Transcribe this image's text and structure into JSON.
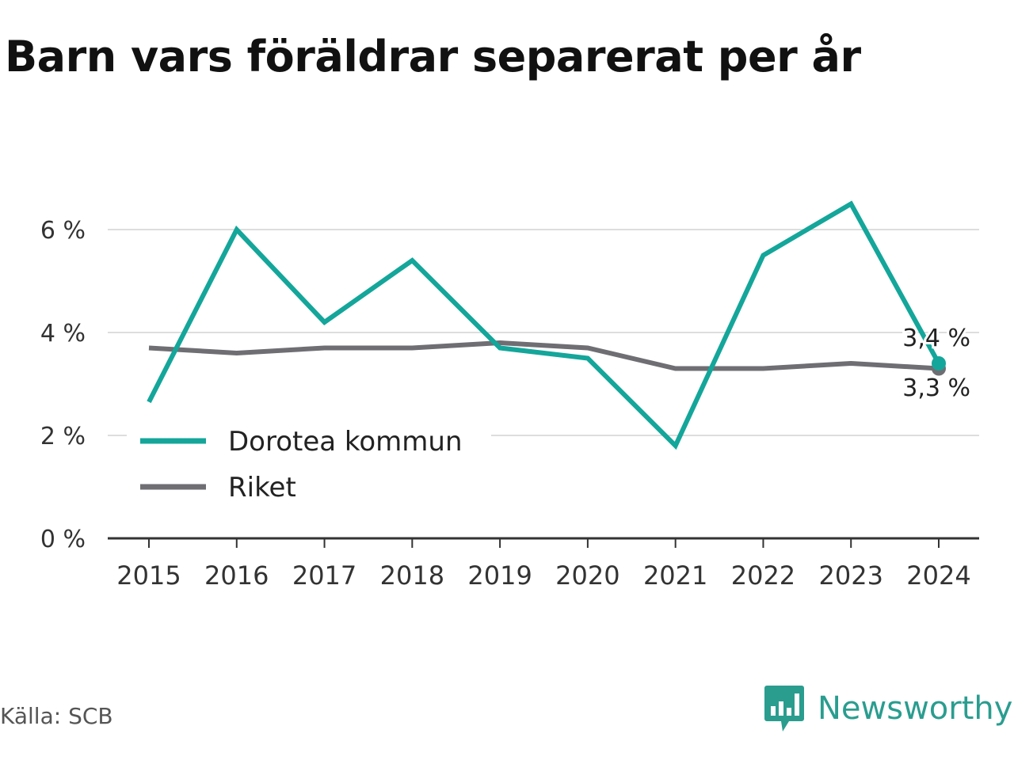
{
  "title": "Barn vars föräldrar separerat per år",
  "source": "Källa: SCB",
  "brand": {
    "name": "Newsworthy",
    "logo_icon": "newsworthy-bar-chart-speech-bubble-icon",
    "color": "#2a9d8f"
  },
  "chart_data": {
    "type": "line",
    "x": [
      "2015",
      "2016",
      "2017",
      "2018",
      "2019",
      "2020",
      "2021",
      "2022",
      "2023",
      "2024"
    ],
    "series": [
      {
        "name": "Dorotea kommun",
        "color": "#14a69a",
        "values": [
          2.65,
          6.0,
          4.2,
          5.4,
          3.7,
          3.5,
          1.8,
          5.5,
          6.5,
          3.4
        ]
      },
      {
        "name": "Riket",
        "color": "#6e6e73",
        "values": [
          3.7,
          3.6,
          3.7,
          3.7,
          3.8,
          3.7,
          3.3,
          3.3,
          3.4,
          3.3
        ]
      }
    ],
    "ylim": [
      0,
      7
    ],
    "yticks": [
      0,
      2,
      4,
      6
    ],
    "ytick_labels": [
      "0 %",
      "2 %",
      "4 %",
      "6 %"
    ],
    "grid": true,
    "legend": "bottom-left",
    "end_labels": [
      "3,4 %",
      "3,3 %"
    ],
    "xlabel": "",
    "ylabel": ""
  }
}
